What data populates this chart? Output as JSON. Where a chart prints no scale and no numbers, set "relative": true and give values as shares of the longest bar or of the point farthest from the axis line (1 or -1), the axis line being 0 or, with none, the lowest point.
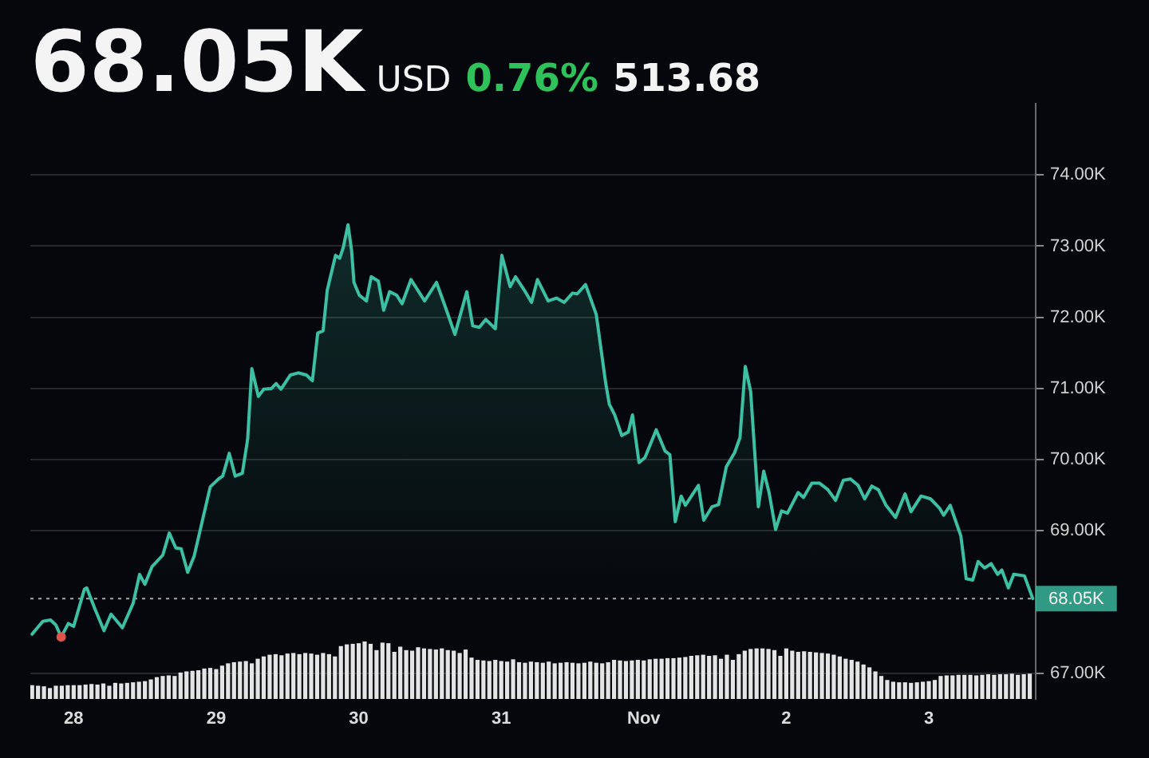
{
  "chart_data": [
    {
      "type": "area",
      "title": "68.05K",
      "subtitle": "USD",
      "annotations": [
        "0.76%",
        "513.68"
      ],
      "x": [
        "--10-27T17:00",
        "--10-27T18:48",
        "--10-27T20:06",
        "--10-27T21:00",
        "--10-27T21:54",
        "--10-27T23:06",
        "--10-28T00:00",
        "--10-28T01:48",
        "--10-28T02:12",
        "--10-28T03:36",
        "--10-28T05:06",
        "--10-28T06:18",
        "--10-28T08:12",
        "--10-28T10:00",
        "--10-28T11:06",
        "--10-28T12:00",
        "--10-28T13:12",
        "--10-28T15:00",
        "--10-28T16:06",
        "--10-28T17:12",
        "--10-28T18:06",
        "--10-28T19:12",
        "--10-28T20:18",
        "--10-28T23:00",
        "--10-29T00:24",
        "--10-29T01:06",
        "--10-29T02:12",
        "--10-29T03:12",
        "--10-29T04:24",
        "--10-29T05:18",
        "--10-29T06:00",
        "--10-29T07:06",
        "--10-29T08:00",
        "--10-29T09:18",
        "--10-29T10:06",
        "--10-29T10:54",
        "--10-29T12:30",
        "--10-29T13:48",
        "--10-29T15:12",
        "--10-29T16:12",
        "--10-29T17:06",
        "--10-29T18:00",
        "--10-29T18:42",
        "--10-29T20:06",
        "--10-29T20:48",
        "--10-29T21:24",
        "--10-29T22:12",
        "--10-29T22:48",
        "--10-29T23:12",
        "--10-30T00:06",
        "--10-30T01:18",
        "--10-30T02:06",
        "--10-30T03:18",
        "--10-30T04:12",
        "--10-30T05:12",
        "--10-30T06:24",
        "--10-30T07:18",
        "--10-30T08:48",
        "--10-30T11:06",
        "--10-30T13:06",
        "--10-30T14:42",
        "--10-30T16:12",
        "--10-30T18:12",
        "--10-30T19:12",
        "--10-30T20:18",
        "--10-30T21:24",
        "--10-30T23:00",
        "--10-31T00:06",
        "--10-31T01:30",
        "--10-31T02:24",
        "--10-31T03:54",
        "--10-31T05:06",
        "--10-31T06:06",
        "--10-31T07:54",
        "--10-31T09:18",
        "--10-31T10:36",
        "--10-31T12:00",
        "--10-31T12:48",
        "--10-31T14:12",
        "--10-31T16:00",
        "--10-31T17:36",
        "--10-31T18:12",
        "--10-31T19:06",
        "--10-31T20:18",
        "--10-31T21:24",
        "--10-31T22:06",
        "--10-31T23:12",
        "--11-01T00:12",
        "--11-01T02:06",
        "--11-01T03:36",
        "--11-01T04:24",
        "--11-01T05:18",
        "--11-01T06:18",
        "--11-01T07:00",
        "--11-01T09:12",
        "--11-01T10:06",
        "--11-01T11:30",
        "--11-01T12:36",
        "--11-01T13:54",
        "--11-01T15:18",
        "--11-01T16:12",
        "--11-01T17:06",
        "--11-01T18:00",
        "--11-01T19:18",
        "--11-01T20:12",
        "--11-01T21:06",
        "--11-01T22:12",
        "--11-01T23:12",
        "--11-02T00:12",
        "--11-02T02:00",
        "--11-02T02:54",
        "--11-02T04:18",
        "--11-02T05:36",
        "--11-02T07:00",
        "--11-02T08:18",
        "--11-02T09:36",
        "--11-02T10:48",
        "--11-02T12:06",
        "--11-02T13:12",
        "--11-02T14:24",
        "--11-02T15:30",
        "--11-02T16:48",
        "--11-02T18:24",
        "--11-02T20:00",
        "--11-02T21:00",
        "--11-02T22:42",
        "--11-03T00:18",
        "--11-03T01:48",
        "--11-03T02:30",
        "--11-03T03:36",
        "--11-03T05:24",
        "--11-03T06:18",
        "--11-03T07:24",
        "--11-03T08:18",
        "--11-03T09:24",
        "--11-03T10:30",
        "--11-03T11:36",
        "--11-03T12:18",
        "--11-03T13:24",
        "--11-03T14:18",
        "--11-03T16:06",
        "--11-03T17:30"
      ],
      "xlim": [
        "--10-27T16:42",
        "--11-03T18:00"
      ],
      "ylim": [
        66.64,
        75
      ],
      "yticks": [
        {
          "value": 67,
          "label": "67.00K"
        },
        {
          "value": 69,
          "label": "69.00K"
        },
        {
          "value": 70,
          "label": "70.00K"
        },
        {
          "value": 71,
          "label": "71.00K"
        },
        {
          "value": 72,
          "label": "72.00K"
        },
        {
          "value": 73,
          "label": "73.00K"
        },
        {
          "value": 74,
          "label": "74.00K"
        }
      ],
      "series": [
        {
          "color": "#3cbfa2",
          "values": [
            67.55,
            67.73,
            67.75,
            67.68,
            67.51,
            67.7,
            67.66,
            68.18,
            68.2,
            67.9,
            67.6,
            67.83,
            67.64,
            67.98,
            68.39,
            68.25,
            68.5,
            68.66,
            68.97,
            68.76,
            68.75,
            68.42,
            68.65,
            69.62,
            69.73,
            69.77,
            70.09,
            69.77,
            69.81,
            70.29,
            71.28,
            70.89,
            70.99,
            71.0,
            71.07,
            70.99,
            71.19,
            71.22,
            71.19,
            71.11,
            71.78,
            71.81,
            72.38,
            72.87,
            72.83,
            72.98,
            73.3,
            72.94,
            72.49,
            72.31,
            72.23,
            72.57,
            72.51,
            72.1,
            72.36,
            72.31,
            72.19,
            72.53,
            72.23,
            72.49,
            72.12,
            71.76,
            72.36,
            71.88,
            71.86,
            71.97,
            71.84,
            72.87,
            72.43,
            72.57,
            72.38,
            72.21,
            72.53,
            72.23,
            72.27,
            72.21,
            72.34,
            72.33,
            72.46,
            72.04,
            71.07,
            70.78,
            70.63,
            70.34,
            70.39,
            70.63,
            69.96,
            70.03,
            70.42,
            70.12,
            70.07,
            69.13,
            69.49,
            69.36,
            69.64,
            69.15,
            69.34,
            69.37,
            69.9,
            70.1,
            70.31,
            71.31,
            70.96,
            69.34,
            69.84,
            69.54,
            69.02,
            69.28,
            69.25,
            69.54,
            69.47,
            69.67,
            69.67,
            69.58,
            69.43,
            69.71,
            69.73,
            69.64,
            69.45,
            69.63,
            69.58,
            69.36,
            69.19,
            69.52,
            69.27,
            69.49,
            69.45,
            69.32,
            69.22,
            69.36,
            68.93,
            68.33,
            68.31,
            68.57,
            68.48,
            68.54,
            68.39,
            68.45,
            68.2,
            68.39,
            68.37,
            68.05
          ]
        },
        {
          "type": "scatter",
          "color": "#e0524a",
          "marker": "circle",
          "x": [
            "--10-27T21:54"
          ],
          "values": [
            67.51
          ]
        }
      ],
      "ref_lines": [
        {
          "axis": "y",
          "value": 68.05,
          "label": "68.05K",
          "color": "#a8a8a8",
          "line_style": "dotted"
        }
      ],
      "grid": "y",
      "tick_labels": "y"
    },
    {
      "type": "bar",
      "relative": true,
      "color": "#e4e4e4",
      "tick_labels": "x",
      "x": [
        "--10-27T17:00",
        "--10-27T18:00",
        "--10-27T19:00",
        "--10-27T20:00",
        "--10-27T21:00",
        "--10-27T22:00",
        "--10-27T23:00",
        "--10-28T00:00",
        "--10-28T01:00",
        "--10-28T02:00",
        "--10-28T03:00",
        "--10-28T04:00",
        "--10-28T05:00",
        "--10-28T06:00",
        "--10-28T07:00",
        "--10-28T08:00",
        "--10-28T09:00",
        "--10-28T10:00",
        "--10-28T11:00",
        "--10-28T12:00",
        "--10-28T13:00",
        "--10-28T14:00",
        "--10-28T15:00",
        "--10-28T16:00",
        "--10-28T17:00",
        "--10-28T18:00",
        "--10-28T19:00",
        "--10-28T20:00",
        "--10-28T21:00",
        "--10-28T22:00",
        "--10-28T23:00",
        "--10-29T00:00",
        "--10-29T01:00",
        "--10-29T02:00",
        "--10-29T03:00",
        "--10-29T04:00",
        "--10-29T05:00",
        "--10-29T06:00",
        "--10-29T07:00",
        "--10-29T08:00",
        "--10-29T09:00",
        "--10-29T10:00",
        "--10-29T11:00",
        "--10-29T12:00",
        "--10-29T13:00",
        "--10-29T14:00",
        "--10-29T15:00",
        "--10-29T16:00",
        "--10-29T17:00",
        "--10-29T18:00",
        "--10-29T19:00",
        "--10-29T20:00",
        "--10-29T21:00",
        "--10-29T22:00",
        "--10-29T23:00",
        "--10-30T00:00",
        "--10-30T01:00",
        "--10-30T02:00",
        "--10-30T03:00",
        "--10-30T04:00",
        "--10-30T05:00",
        "--10-30T06:00",
        "--10-30T07:00",
        "--10-30T08:00",
        "--10-30T09:00",
        "--10-30T10:00",
        "--10-30T11:00",
        "--10-30T12:00",
        "--10-30T13:00",
        "--10-30T14:00",
        "--10-30T15:00",
        "--10-30T16:00",
        "--10-30T17:00",
        "--10-30T18:00",
        "--10-30T19:00",
        "--10-30T20:00",
        "--10-30T21:00",
        "--10-30T22:00",
        "--10-30T23:00",
        "--10-31T00:00",
        "--10-31T01:00",
        "--10-31T02:00",
        "--10-31T03:00",
        "--10-31T04:00",
        "--10-31T05:00",
        "--10-31T06:00",
        "--10-31T07:00",
        "--10-31T08:00",
        "--10-31T09:00",
        "--10-31T10:00",
        "--10-31T11:00",
        "--10-31T12:00",
        "--10-31T13:00",
        "--10-31T14:00",
        "--10-31T15:00",
        "--10-31T16:00",
        "--10-31T17:00",
        "--10-31T18:00",
        "--10-31T19:00",
        "--10-31T20:00",
        "--10-31T21:00",
        "--10-31T22:00",
        "--10-31T23:00",
        "--11-01T00:00",
        "--11-01T01:00",
        "--11-01T02:00",
        "--11-01T03:00",
        "--11-01T04:00",
        "--11-01T05:00",
        "--11-01T06:00",
        "--11-01T07:00",
        "--11-01T08:00",
        "--11-01T09:00",
        "--11-01T10:00",
        "--11-01T11:00",
        "--11-01T12:00",
        "--11-01T13:00",
        "--11-01T14:00",
        "--11-01T15:00",
        "--11-01T16:00",
        "--11-01T17:00",
        "--11-01T18:00",
        "--11-01T19:00",
        "--11-01T20:00",
        "--11-01T21:00",
        "--11-01T22:00",
        "--11-01T23:00",
        "--11-02T00:00",
        "--11-02T01:00",
        "--11-02T02:00",
        "--11-02T03:00",
        "--11-02T04:00",
        "--11-02T05:00",
        "--11-02T06:00",
        "--11-02T07:00",
        "--11-02T08:00",
        "--11-02T09:00",
        "--11-02T10:00",
        "--11-02T11:00",
        "--11-02T12:00",
        "--11-02T13:00",
        "--11-02T14:00",
        "--11-02T15:00",
        "--11-02T16:00",
        "--11-02T17:00",
        "--11-02T18:00",
        "--11-02T19:00",
        "--11-02T20:00",
        "--11-02T21:00",
        "--11-02T22:00",
        "--11-02T23:00",
        "--11-03T00:00",
        "--11-03T01:00",
        "--11-03T02:00",
        "--11-03T03:00",
        "--11-03T04:00",
        "--11-03T05:00",
        "--11-03T06:00",
        "--11-03T07:00",
        "--11-03T08:00",
        "--11-03T09:00",
        "--11-03T10:00",
        "--11-03T11:00",
        "--11-03T12:00",
        "--11-03T13:00",
        "--11-03T14:00",
        "--11-03T15:00",
        "--11-03T16:00",
        "--11-03T17:00"
      ],
      "xlim": [
        "--10-27T16:42",
        "--11-03T18:00"
      ],
      "xticks": [
        {
          "value": "--10-28",
          "label": "28"
        },
        {
          "value": "--10-29",
          "label": "29"
        },
        {
          "value": "--10-30",
          "label": "30"
        },
        {
          "value": "--10-31",
          "label": "31"
        },
        {
          "value": "--11-01",
          "label": "Nov"
        },
        {
          "value": "--11-02",
          "label": "2"
        },
        {
          "value": "--11-03",
          "label": "3"
        }
      ],
      "values": [
        0.24,
        0.23,
        0.22,
        0.19,
        0.23,
        0.23,
        0.24,
        0.24,
        0.24,
        0.25,
        0.26,
        0.25,
        0.27,
        0.23,
        0.28,
        0.27,
        0.28,
        0.29,
        0.3,
        0.31,
        0.34,
        0.38,
        0.4,
        0.41,
        0.4,
        0.46,
        0.48,
        0.49,
        0.5,
        0.53,
        0.54,
        0.52,
        0.58,
        0.62,
        0.64,
        0.65,
        0.66,
        0.62,
        0.7,
        0.74,
        0.77,
        0.78,
        0.76,
        0.79,
        0.8,
        0.78,
        0.8,
        0.79,
        0.77,
        0.8,
        0.78,
        0.74,
        0.92,
        0.95,
        0.96,
        0.97,
        1,
        0.96,
        0.85,
        0.98,
        0.97,
        0.82,
        0.91,
        0.85,
        0.84,
        0.9,
        0.88,
        0.87,
        0.86,
        0.88,
        0.85,
        0.84,
        0.8,
        0.86,
        0.72,
        0.68,
        0.67,
        0.66,
        0.68,
        0.66,
        0.65,
        0.69,
        0.64,
        0.63,
        0.65,
        0.64,
        0.63,
        0.65,
        0.62,
        0.63,
        0.64,
        0.63,
        0.62,
        0.63,
        0.65,
        0.63,
        0.62,
        0.64,
        0.68,
        0.67,
        0.66,
        0.67,
        0.68,
        0.67,
        0.69,
        0.7,
        0.7,
        0.71,
        0.71,
        0.72,
        0.73,
        0.75,
        0.76,
        0.77,
        0.75,
        0.76,
        0.7,
        0.77,
        0.68,
        0.78,
        0.84,
        0.87,
        0.88,
        0.88,
        0.87,
        0.85,
        0.75,
        0.88,
        0.84,
        0.82,
        0.83,
        0.82,
        0.81,
        0.8,
        0.79,
        0.77,
        0.74,
        0.7,
        0.68,
        0.65,
        0.6,
        0.55,
        0.48,
        0.4,
        0.33,
        0.3,
        0.29,
        0.29,
        0.28,
        0.29,
        0.3,
        0.31,
        0.33,
        0.4,
        0.41,
        0.41,
        0.42,
        0.42,
        0.42,
        0.41,
        0.42,
        0.43,
        0.42,
        0.43,
        0.43,
        0.44,
        0.42,
        0.43,
        0.44
      ]
    }
  ]
}
